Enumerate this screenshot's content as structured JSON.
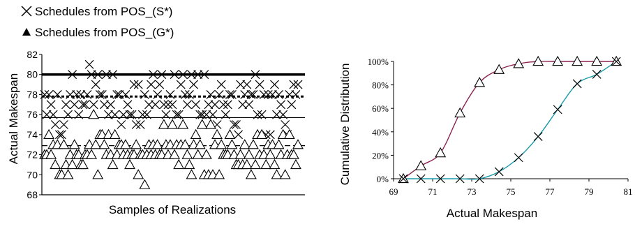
{
  "legend": [
    {
      "marker": "cross",
      "label": "Schedules from POS_(S*)"
    },
    {
      "marker": "filled-triangle",
      "label": "Schedules from POS_(G*)"
    }
  ],
  "chart_data": [
    {
      "type": "scatter",
      "xlabel": "Samples of Realizations",
      "ylabel": "Actual Makespan",
      "ylim": [
        68,
        82
      ],
      "yticks": [
        68,
        70,
        72,
        74,
        76,
        78,
        80,
        82
      ],
      "xticks_shown": false,
      "reference_lines": [
        {
          "style": "thick-solid",
          "y": 80
        },
        {
          "style": "thick-dotted",
          "y": 77.8
        },
        {
          "style": "thin-solid",
          "y": 75.7
        },
        {
          "style": "thin-dashed",
          "y": 72.9
        }
      ],
      "series": [
        {
          "marker": "cross",
          "values": [
            78,
            76,
            78,
            77,
            76,
            75,
            78,
            74,
            74,
            75,
            77,
            76,
            78,
            80,
            77,
            78,
            76,
            78,
            77,
            77,
            78,
            81,
            80,
            77,
            79,
            80,
            78,
            78,
            77,
            80,
            76,
            77,
            80,
            76,
            78,
            78,
            75,
            76,
            78,
            77,
            76,
            76,
            79,
            75,
            79,
            75,
            76,
            78,
            76,
            77,
            79,
            80,
            77,
            78,
            79,
            80,
            77,
            76,
            77,
            78,
            77,
            80,
            76,
            76,
            79,
            80,
            78,
            77,
            78,
            80,
            79,
            77,
            80,
            76,
            76,
            80,
            76,
            77,
            78,
            76,
            77,
            75,
            78,
            79,
            77,
            76,
            77,
            78,
            78,
            75,
            75,
            74,
            79,
            77,
            78,
            79,
            77,
            78,
            78,
            80,
            76,
            79,
            76,
            78,
            74,
            78,
            74,
            78,
            79,
            76,
            78,
            77,
            76,
            75,
            74,
            78,
            77,
            79,
            78,
            79
          ]
        },
        {
          "marker": "open-triangle",
          "values": [
            72,
            72,
            74,
            72,
            73,
            71,
            73,
            70,
            70,
            73,
            71,
            70,
            72,
            71,
            73,
            72,
            72,
            71,
            71,
            72,
            72,
            73,
            72,
            76,
            73,
            70,
            74,
            74,
            73,
            72,
            74,
            72,
            71,
            74,
            72,
            73,
            73,
            72,
            73,
            72,
            71,
            72,
            72,
            73,
            70,
            72,
            72,
            69,
            72,
            73,
            72,
            73,
            72,
            73,
            72,
            72,
            75,
            73,
            72,
            73,
            75,
            72,
            73,
            71,
            73,
            75,
            73,
            72,
            71,
            70,
            73,
            74,
            72,
            73,
            75,
            70,
            72,
            70,
            75,
            70,
            73,
            74,
            70,
            73,
            72,
            72,
            72,
            74,
            73,
            72,
            71,
            71,
            72,
            71,
            73,
            71,
            72,
            70,
            73,
            71,
            74,
            72,
            74,
            72,
            71,
            73,
            72,
            73,
            71,
            70,
            73,
            72,
            74,
            70,
            72,
            74,
            72,
            72,
            71,
            73
          ]
        }
      ]
    },
    {
      "type": "line",
      "xlabel": "Actual Makespan",
      "ylabel": "Cumulative Distribution",
      "xlim": [
        69,
        81
      ],
      "ylim": [
        0,
        100
      ],
      "xticks": [
        69,
        71,
        73,
        75,
        77,
        79,
        81
      ],
      "yticks": [
        "0%",
        "20%",
        "40%",
        "60%",
        "80%",
        "100%"
      ],
      "series": [
        {
          "marker": "open-triangle",
          "color": "#8b2150",
          "x": [
            69.5,
            70.4,
            71.4,
            72.4,
            73.4,
            74.4,
            75.4,
            76.4,
            77.4,
            78.4,
            79.4,
            80.4
          ],
          "y": [
            0,
            11,
            22,
            56,
            82,
            93,
            98,
            100,
            100,
            100,
            100,
            100
          ]
        },
        {
          "marker": "cross",
          "color": "#1a9aa8",
          "x": [
            69.5,
            70.4,
            71.4,
            72.4,
            73.4,
            74.4,
            75.4,
            76.4,
            77.4,
            78.4,
            79.4,
            80.4
          ],
          "y": [
            0,
            0,
            0,
            0,
            0,
            6,
            18,
            36,
            59,
            81,
            89,
            100
          ]
        }
      ]
    }
  ]
}
